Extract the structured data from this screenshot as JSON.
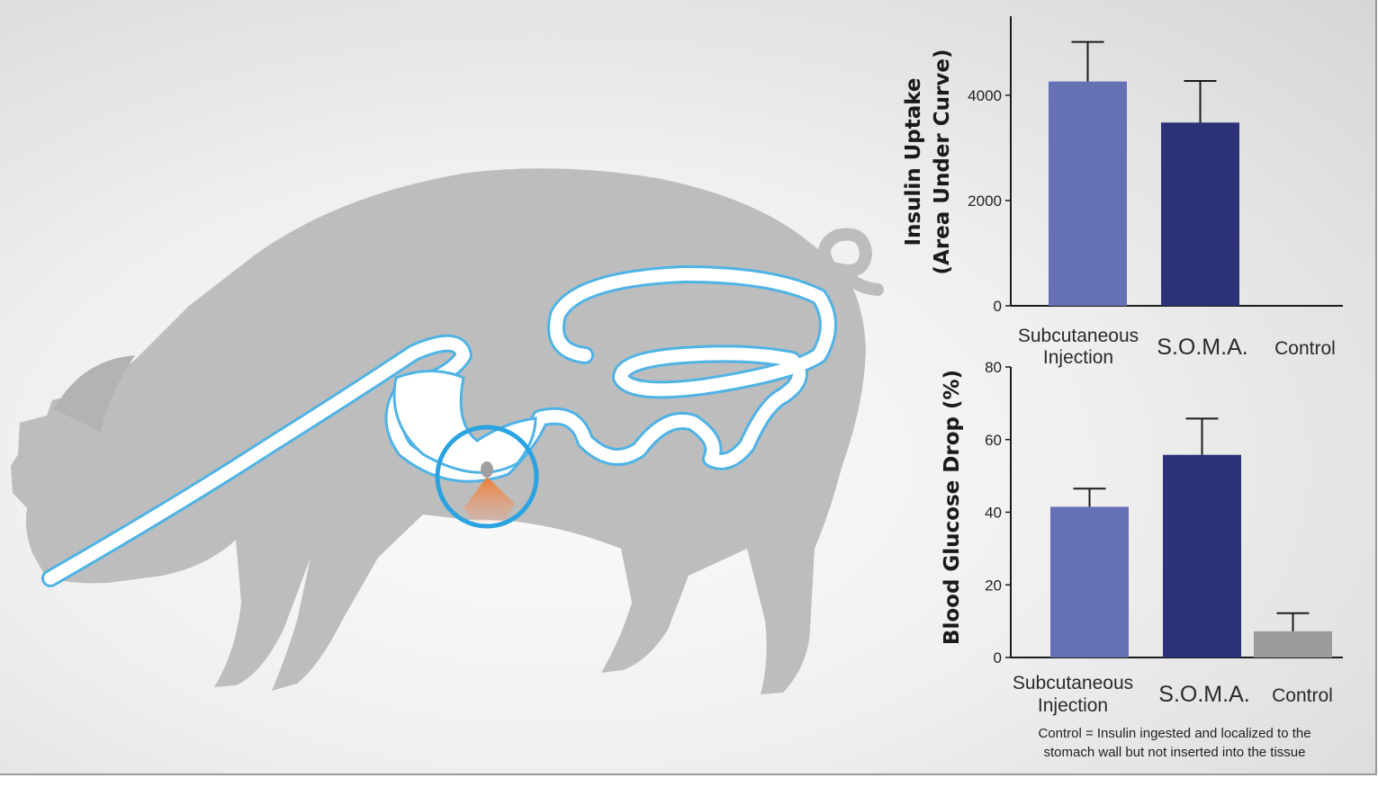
{
  "illustration": {
    "subject": "pig-silhouette-icon",
    "highlight": "target-circle-icon",
    "colors": {
      "body": "#bdbdbd",
      "tract_outline": "#4fb3e6",
      "tract_fill": "#ffffff",
      "circle": "#2aa3e0",
      "spray": "#f07a2a"
    }
  },
  "chart_data": [
    {
      "type": "bar",
      "ylabel_lines": [
        "Insulin Uptake",
        "(Area Under Curve)"
      ],
      "ylim": [
        0,
        5500
      ],
      "yticks": [
        0,
        2000,
        4000
      ],
      "grid": false,
      "categories": [
        {
          "lines": [
            "Subcutaneous",
            "Injection"
          ],
          "big": false
        },
        {
          "lines": [
            "S.O.M.A."
          ],
          "big": true
        },
        {
          "lines": [
            "Control"
          ],
          "big": false
        }
      ],
      "values": [
        4260,
        3480,
        0
      ],
      "errors": [
        750,
        790,
        0
      ],
      "colors": [
        "#6670b4",
        "#2b3277",
        "#9b9b9b"
      ]
    },
    {
      "type": "bar",
      "ylabel_lines": [
        "Blood Glucose Drop (%)"
      ],
      "ylim": [
        0,
        80
      ],
      "yticks": [
        0,
        20,
        40,
        60,
        80
      ],
      "grid": false,
      "categories": [
        {
          "lines": [
            "Subcutaneous",
            "Injection"
          ],
          "big": false
        },
        {
          "lines": [
            "S.O.M.A."
          ],
          "big": true
        },
        {
          "lines": [
            "Control"
          ],
          "big": false
        }
      ],
      "values": [
        41.5,
        55.8,
        7.2
      ],
      "errors": [
        5,
        10,
        5
      ],
      "colors": [
        "#6670b4",
        "#2b3277",
        "#9b9b9b"
      ]
    }
  ],
  "footnote": {
    "line1": "Control = Insulin ingested and localized to the",
    "line2": "stomach wall but not inserted into the tissue"
  }
}
